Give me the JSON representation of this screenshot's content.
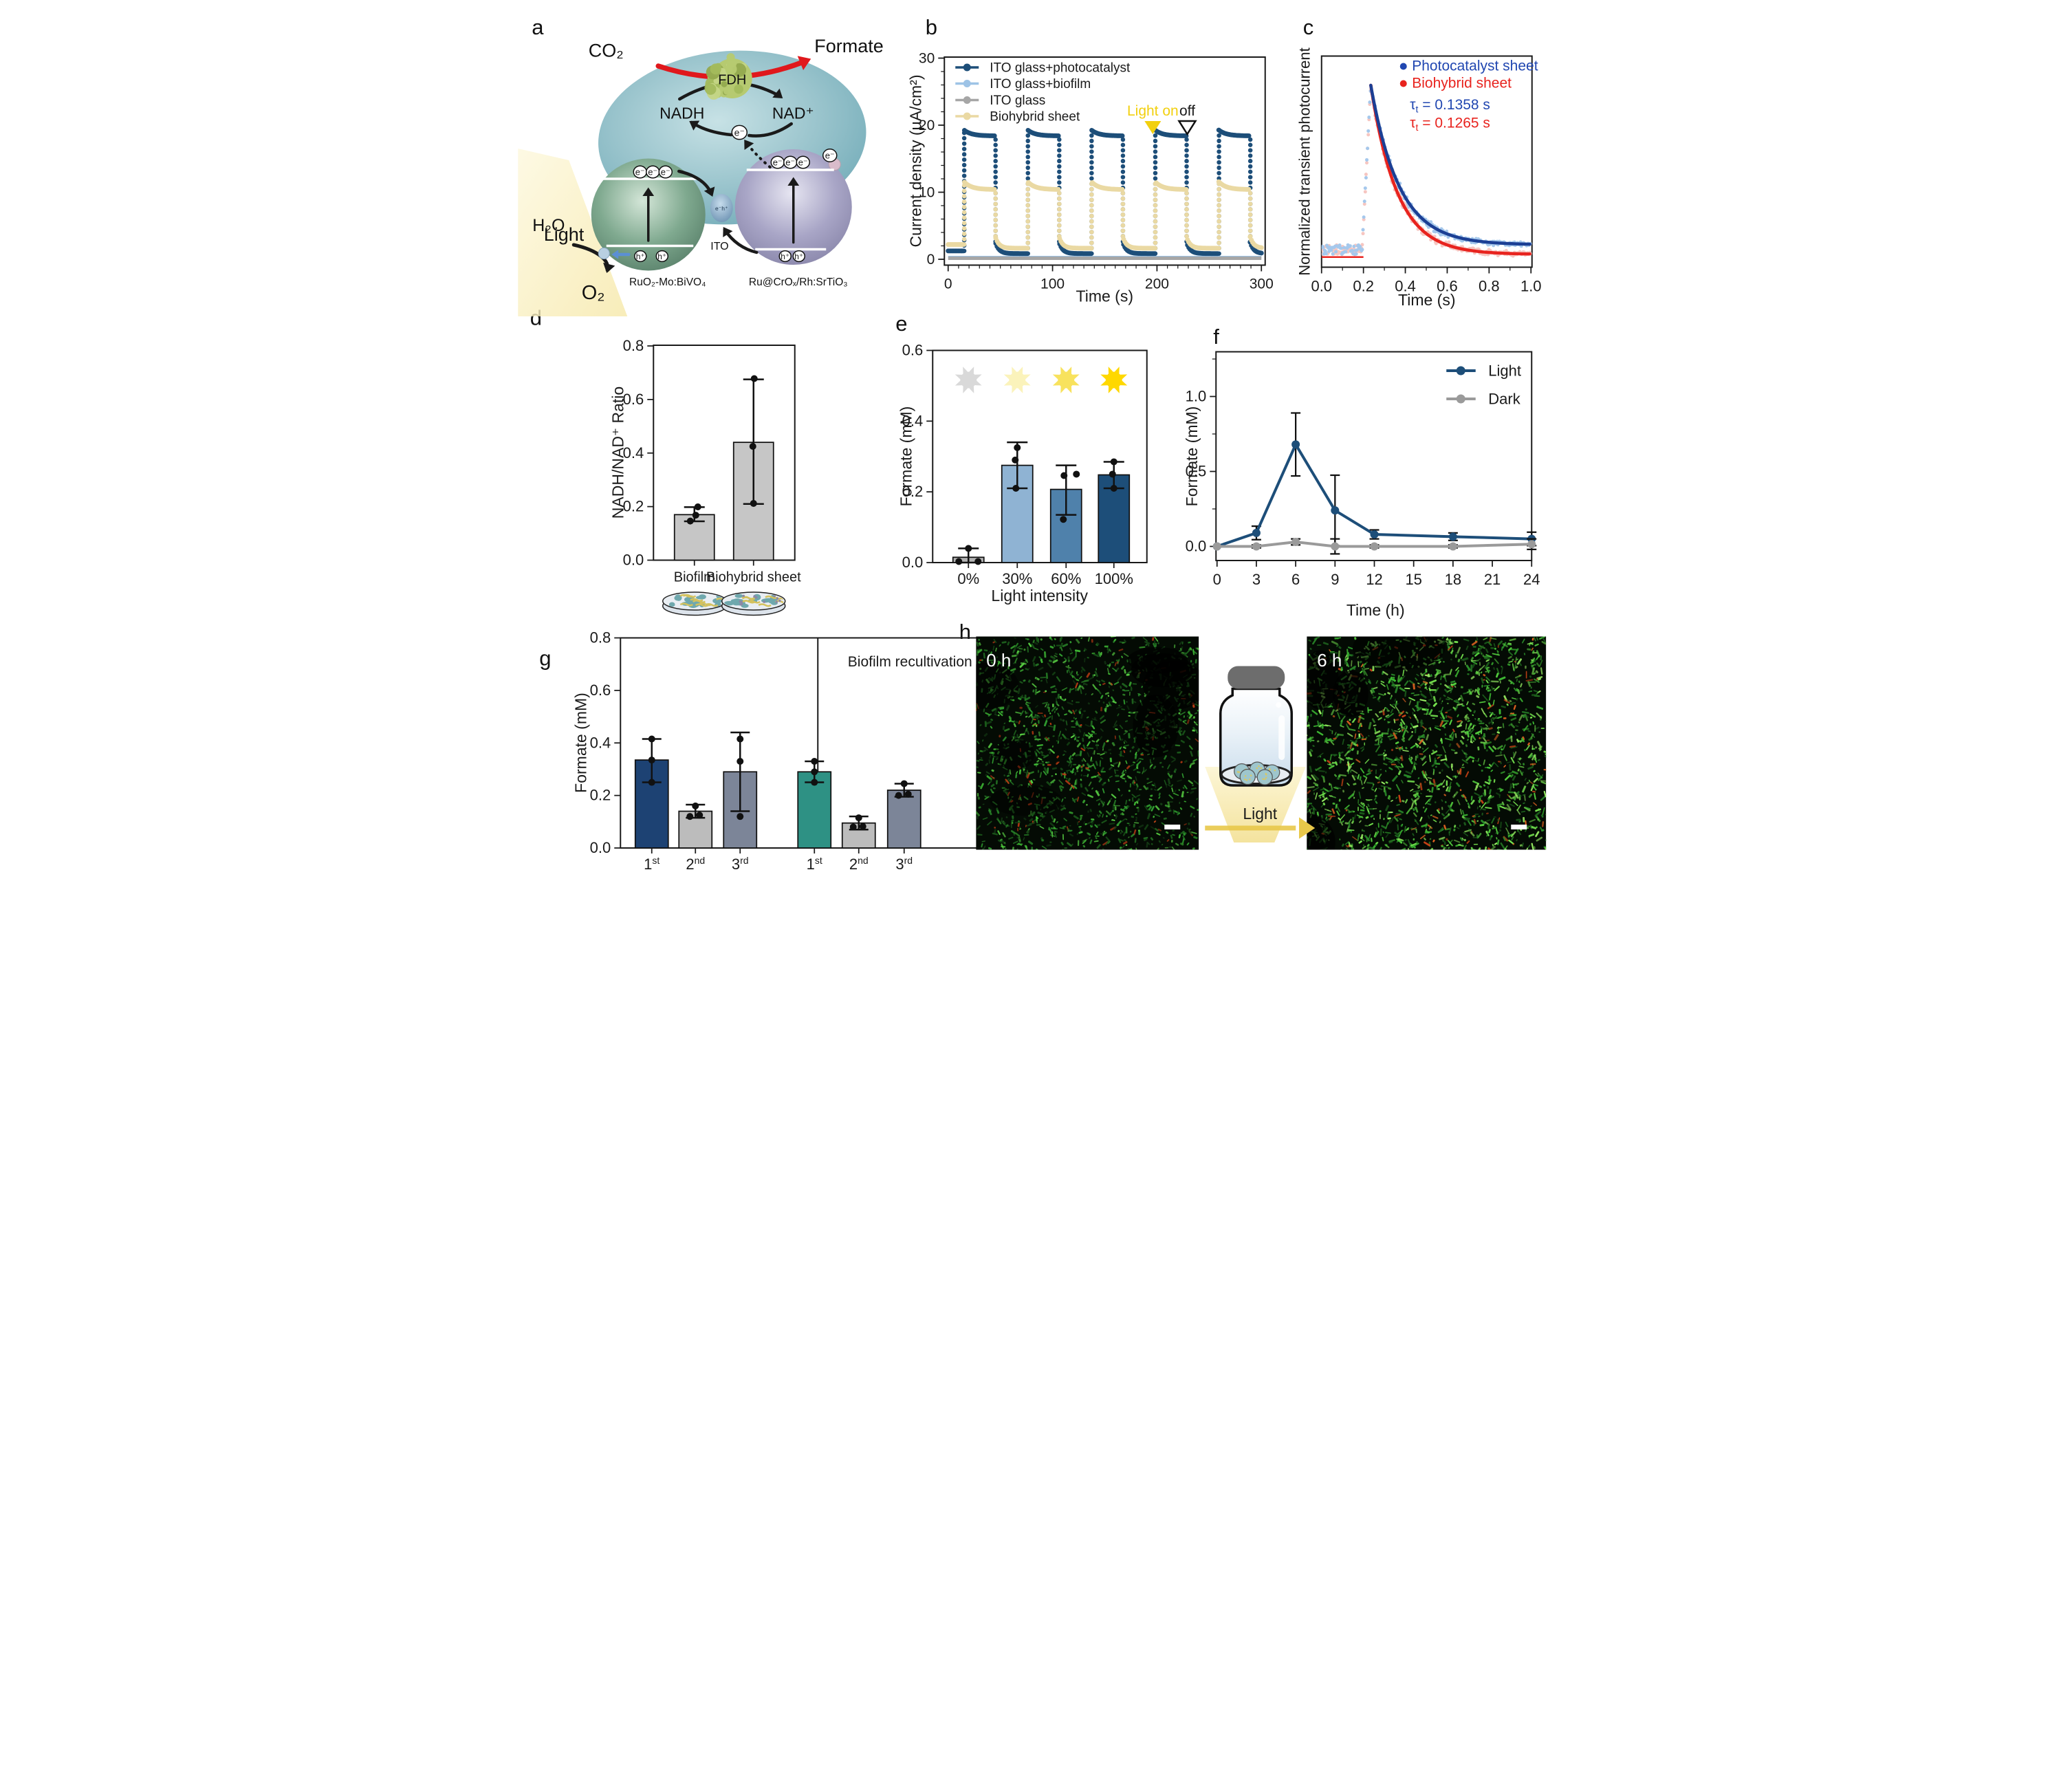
{
  "panel_letters": {
    "a": "a",
    "b": "b",
    "c": "c",
    "d": "d",
    "e": "e",
    "f": "f",
    "g": "g",
    "h": "h"
  },
  "panel_a": {
    "labels": {
      "co2": "CO₂",
      "formate": "Formate",
      "fdh": "FDH",
      "nadh": "NADH",
      "nad": "NAD⁺",
      "electron": "e⁻",
      "hole": "h⁺",
      "eh_pair": "e⁻h⁺",
      "light": "Light",
      "h2o": "H₂O",
      "o2": "O₂",
      "ito": "ITO",
      "left_catalyst": "RuO₂-Mo:BiVO₄",
      "right_catalyst": "Ru@CrOₓ/Rh:SrTiO₃"
    },
    "colors": {
      "red_arrow": "#e0181c",
      "cell": "#7cb4bf",
      "green_sphere": "#6f9d83",
      "purple_sphere": "#9a97b8",
      "fdh_blob": "#b6ca70",
      "beam": "#faf3cf",
      "connector": "#86a9c6",
      "blue_arrow": "#5b8fd4"
    }
  },
  "chart_data": [
    {
      "id": "b",
      "type": "line-pulse",
      "xlabel": "Time (s)",
      "ylabel": "Current density (μA/cm²)",
      "xlim": [
        0,
        300
      ],
      "ylim": [
        0,
        30
      ],
      "xticks": [
        0,
        100,
        200,
        300
      ],
      "yticks": [
        0,
        10,
        20,
        30
      ],
      "x_minor_step": 10,
      "y_minor_step": 2,
      "grid": false,
      "legend_position": "top-left",
      "light_cycles": [
        [
          15,
          45
        ],
        [
          76,
          106
        ],
        [
          137,
          167
        ],
        [
          198,
          228
        ],
        [
          259,
          289
        ]
      ],
      "series": [
        {
          "name": "ITO glass+photocatalyst",
          "color": "#1d4e79",
          "kind": "pulse",
          "pre_level": 1.25,
          "off_level": 0.85,
          "on_start": 19.3,
          "on_end": 18.4
        },
        {
          "name": "ITO glass+biofilm",
          "color": "#9dc3e6",
          "kind": "flat",
          "level": 0.33
        },
        {
          "name": "ITO glass",
          "color": "#a6a6a6",
          "kind": "flat",
          "level": 0.15
        },
        {
          "name": "Biohybrid sheet",
          "color": "#ead9a3",
          "kind": "pulse",
          "pre_level": 2.2,
          "off_level": 1.65,
          "on_start": 11.6,
          "on_end": 10.4
        }
      ],
      "annotations": {
        "light_on": {
          "label": "Light on",
          "color": "#f2d00f",
          "t": 196
        },
        "light_off": {
          "label": "off",
          "t": 229
        }
      }
    },
    {
      "id": "c",
      "type": "scatter-fit",
      "xlabel": "Time (s)",
      "ylabel": "Normalized transient photocurrent",
      "xlim": [
        0,
        1
      ],
      "xticks": [
        "0.0",
        "0.2",
        "0.4",
        "0.6",
        "0.8",
        "1.0"
      ],
      "x_minor_step": 0.1,
      "rise_start": 0.193,
      "peak_time": 0.235,
      "baseline_noise": 0.055,
      "series": [
        {
          "name": "Photocatalyst sheet",
          "scatter_color": "#a5c8ec",
          "fit_color": "#1c3f94",
          "legend_color": "#2147b1",
          "tau": 0.1358,
          "tau_label": "= 0.1358 s",
          "asymptote": 0.085
        },
        {
          "name": "Biohybrid sheet",
          "scatter_color": "#f6c6c1",
          "fit_color": "#e8231e",
          "legend_color": "#e8231e",
          "tau": 0.1265,
          "tau_label": "= 0.1265 s",
          "asymptote": 0.03
        }
      ],
      "tau_symbol": "τ",
      "tau_sub": "t"
    },
    {
      "id": "d",
      "type": "bar",
      "ylabel": "NADH/NAD⁺ Ratio",
      "ylim": [
        0,
        0.8
      ],
      "yticks": [
        "0.0",
        "0.2",
        "0.4",
        "0.6",
        "0.8"
      ],
      "categories": [
        "Biofilm",
        "Biohybrid sheet"
      ],
      "values": [
        0.17,
        0.44
      ],
      "errors": [
        [
          0.145,
          0.198
        ],
        [
          0.21,
          0.675
        ]
      ],
      "points": [
        [
          [
            -12,
            0.146
          ],
          [
            4,
            0.168
          ],
          [
            10,
            0.199
          ]
        ],
        [
          [
            0,
            0.212
          ],
          [
            -2,
            0.425
          ],
          [
            2,
            0.678
          ]
        ]
      ],
      "bar_colors": [
        "#c6c6c6",
        "#c6c6c6"
      ]
    },
    {
      "id": "e",
      "type": "bar",
      "xlabel": "Light intensity",
      "ylabel": "Formate (mM)",
      "ylim": [
        0,
        0.6
      ],
      "yticks": [
        "0.0",
        "0.2",
        "0.4",
        "0.6"
      ],
      "categories": [
        "0%",
        "30%",
        "60%",
        "100%"
      ],
      "values": [
        0.015,
        0.275,
        0.207,
        0.248
      ],
      "errors": [
        [
          0.0,
          0.04
        ],
        [
          0.21,
          0.34
        ],
        [
          0.135,
          0.275
        ],
        [
          0.21,
          0.285
        ]
      ],
      "points": [
        [
          [
            -28,
            0.003
          ],
          [
            28,
            0.003
          ],
          [
            0,
            0.04
          ]
        ],
        [
          [
            -4,
            0.21
          ],
          [
            -6,
            0.29
          ],
          [
            0,
            0.325
          ]
        ],
        [
          [
            -8,
            0.122
          ],
          [
            -6,
            0.246
          ],
          [
            30,
            0.25
          ]
        ],
        [
          [
            0,
            0.21
          ],
          [
            -4,
            0.25
          ],
          [
            0,
            0.285
          ]
        ]
      ],
      "bar_colors": [
        "#b3b3b3",
        "#8fb3d3",
        "#4f81ab",
        "#1d4e79"
      ],
      "sun_colors": [
        "#d9d9d9",
        "#fbf3bb",
        "#f8e25d",
        "#ffd800"
      ]
    },
    {
      "id": "f",
      "type": "line-err",
      "xlabel": "Time (h)",
      "ylabel": "Formate (mM)",
      "xticks": [
        0,
        3,
        6,
        9,
        12,
        15,
        18,
        21,
        24
      ],
      "yticks": [
        "0.0",
        "0.5",
        "1.0"
      ],
      "y_minor": [
        0.25,
        0.75,
        1.25
      ],
      "x": [
        0,
        3,
        6,
        9,
        12,
        18,
        24
      ],
      "series": [
        {
          "name": "Light",
          "color": "#1d4e79",
          "values": [
            0.0,
            0.09,
            0.68,
            0.24,
            0.08,
            0.065,
            0.05
          ],
          "err": [
            0,
            0.045,
            0.21,
            0.235,
            0.03,
            0.025,
            0.045
          ]
        },
        {
          "name": "Dark",
          "color": "#9a9a9a",
          "values": [
            0.0,
            0.0,
            0.03,
            0.0,
            0.0,
            0.0,
            0.015
          ],
          "err": [
            0,
            0.01,
            0.02,
            0.05,
            0.01,
            0.01,
            0.035
          ]
        }
      ]
    },
    {
      "id": "g",
      "type": "bar-group",
      "ylabel": "Formate (mM)",
      "ylim": [
        0,
        0.8
      ],
      "yticks": [
        "0.0",
        "0.2",
        "0.4",
        "0.6",
        "0.8"
      ],
      "group2_label": "Biofilm recultivation",
      "categories": [
        {
          "base": "1",
          "sup": "st"
        },
        {
          "base": "2",
          "sup": "nd"
        },
        {
          "base": "3",
          "sup": "rd"
        }
      ],
      "groups": [
        {
          "values": [
            0.335,
            0.14,
            0.29
          ],
          "errors": [
            [
              0.25,
              0.415
            ],
            [
              0.115,
              0.165
            ],
            [
              0.14,
              0.44
            ]
          ],
          "points": [
            [
              [
                0,
                0.25
              ],
              [
                0,
                0.335
              ],
              [
                0,
                0.415
              ]
            ],
            [
              [
                -16,
                0.12
              ],
              [
                12,
                0.125
              ],
              [
                0,
                0.16
              ]
            ],
            [
              [
                0,
                0.12
              ],
              [
                0,
                0.33
              ],
              [
                0,
                0.415
              ]
            ]
          ],
          "colors": [
            "#1d4273",
            "#bcbcbc",
            "#7c8598"
          ]
        },
        {
          "values": [
            0.29,
            0.095,
            0.22
          ],
          "errors": [
            [
              0.25,
              0.33
            ],
            [
              0.07,
              0.12
            ],
            [
              0.195,
              0.245
            ]
          ],
          "points": [
            [
              [
                0,
                0.25
              ],
              [
                0,
                0.29
              ],
              [
                0,
                0.33
              ]
            ],
            [
              [
                -16,
                0.08
              ],
              [
                12,
                0.082
              ],
              [
                0,
                0.115
              ]
            ],
            [
              [
                -16,
                0.2
              ],
              [
                12,
                0.205
              ],
              [
                0,
                0.245
              ]
            ]
          ],
          "colors": [
            "#2e9184",
            "#bcbcbc",
            "#7c8598"
          ]
        }
      ]
    }
  ],
  "panel_h": {
    "image_labels": [
      "0 h",
      "6 h"
    ],
    "light_label": "Light",
    "colors": {
      "cap": "#6d6d6d",
      "beam": "#f8edbc",
      "arrow": "#e8c84a",
      "image_bg": "#040b04"
    }
  }
}
